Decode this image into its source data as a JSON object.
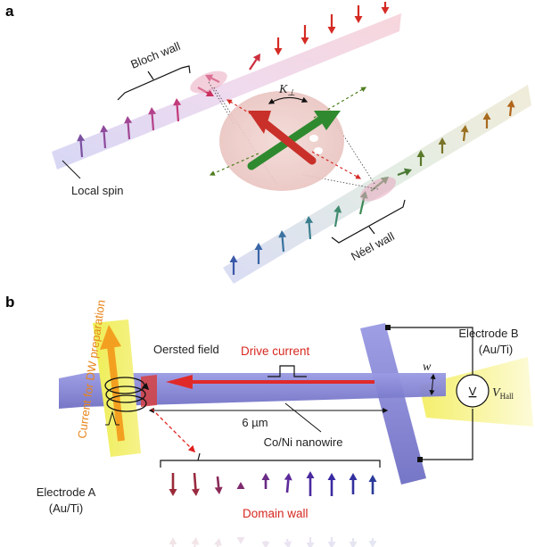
{
  "panel_a": {
    "letter": "a",
    "bloch_wall_label": "Bloch wall",
    "local_spin_label": "Local spin",
    "neel_wall_label": "Néel wall",
    "k_perp_symbol": "K",
    "k_perp_sub": "⊥"
  },
  "panel_b": {
    "letter": "b",
    "current_prep_label": "Current for DW preparation",
    "oersted_label": "Oersted field",
    "drive_current_label": "Drive current",
    "electrode_b_label": "Electrode B",
    "electrode_b_material": "(Au/Ti)",
    "width_label": "w",
    "voltmeter_symbol": "V",
    "v_hall_symbol": "V",
    "v_hall_sub": "Hall",
    "distance_label": "6 µm",
    "nanowire_label": "Co/Ni nanowire",
    "electrode_a_label": "Electrode A",
    "electrode_a_material": "(Au/Ti)",
    "domain_wall_label": "Domain wall"
  },
  "colors": {
    "red_arrow": "#d42b24",
    "green_arrow": "#2f8a2f",
    "purple_bar": "#7f7fd6",
    "yellow_electrode": "#f0ee54",
    "orange_text": "#e8841a"
  }
}
